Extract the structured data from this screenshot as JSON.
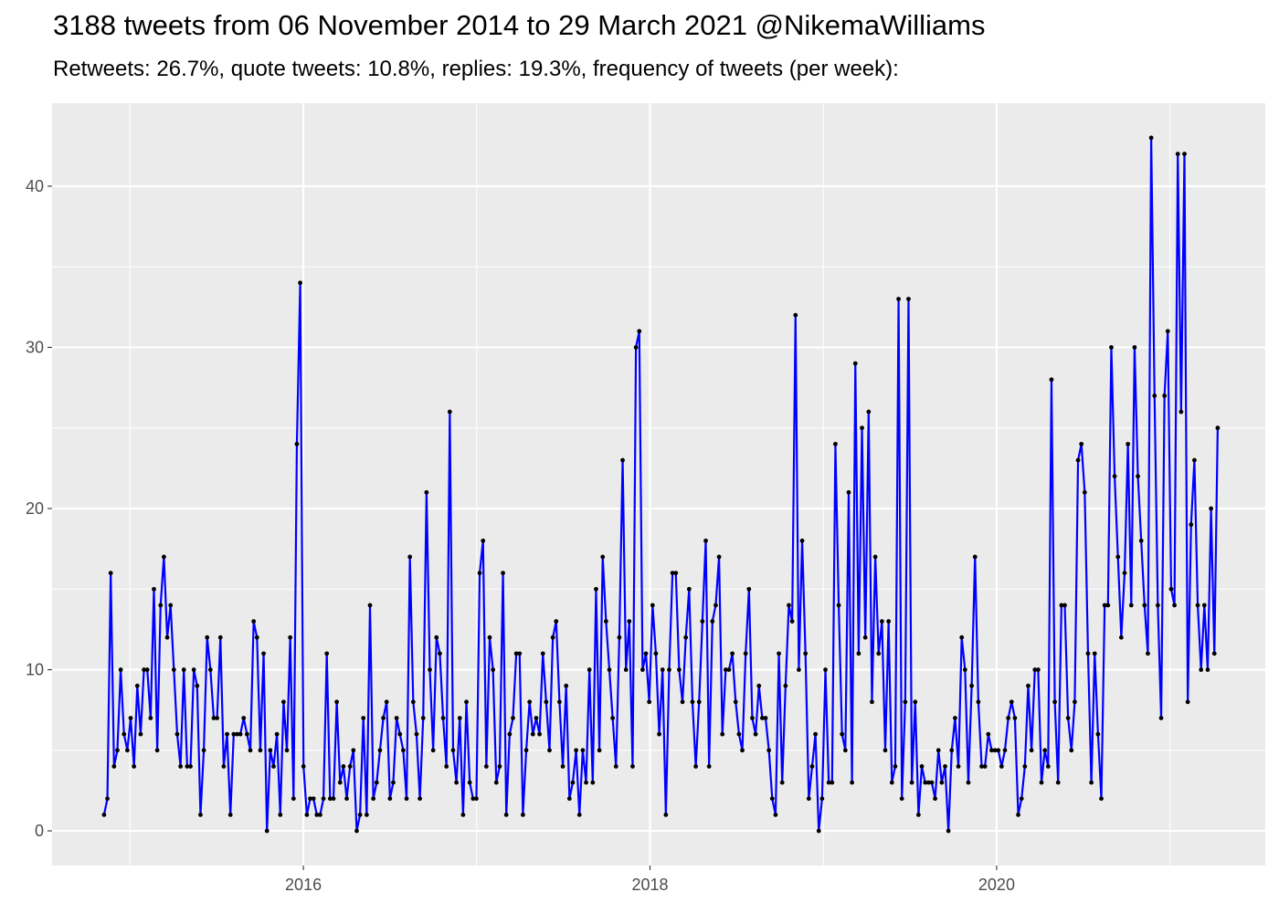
{
  "title": "3188 tweets from 06 November 2014 to 29 March 2021 @NikemaWilliams",
  "subtitle": "Retweets: 26.7%, quote tweets: 10.8%, replies: 19.3%, frequency of tweets (per week):",
  "colors": {
    "line": "#0000ff",
    "point": "#000000",
    "panel": "#ebebeb",
    "grid_major": "#ffffff"
  },
  "chart_data": {
    "type": "line",
    "xlabel": "",
    "ylabel": "",
    "x_range": [
      2014.85,
      2021.26
    ],
    "ylim": [
      0,
      43
    ],
    "x_ticks": [
      2016,
      2018,
      2020
    ],
    "x_tick_labels": [
      "2016",
      "2018",
      "2020"
    ],
    "y_ticks": [
      0,
      10,
      20,
      30,
      40
    ],
    "y_tick_labels": [
      "0",
      "10",
      "20",
      "30",
      "40"
    ],
    "grid": true,
    "series": [
      {
        "start_year": 2014.85,
        "step_years": 0.01918,
        "values": [
          1,
          2,
          16,
          4,
          5,
          10,
          6,
          5,
          7,
          4,
          9,
          6,
          10,
          10,
          7,
          15,
          5,
          14,
          17,
          12,
          14,
          10,
          6,
          4,
          10,
          4,
          4,
          10,
          9,
          1,
          5,
          12,
          10,
          7,
          7,
          12,
          4,
          6,
          1,
          6,
          6,
          6,
          7,
          6,
          5,
          13,
          12,
          5,
          11,
          0,
          5,
          4,
          6,
          1,
          8,
          5,
          12,
          2,
          24,
          34,
          4,
          1,
          2,
          2,
          1,
          1,
          2,
          11,
          2,
          2,
          8,
          3,
          4,
          2,
          4,
          5,
          0,
          1,
          7,
          1,
          14,
          2,
          3,
          5,
          7,
          8,
          2,
          3,
          7,
          6,
          5,
          2,
          17,
          8,
          6,
          2,
          7,
          21,
          10,
          5,
          12,
          11,
          7,
          4,
          26,
          5,
          3,
          7,
          1,
          8,
          3,
          2,
          2,
          16,
          18,
          4,
          12,
          10,
          3,
          4,
          16,
          1,
          6,
          7,
          11,
          11,
          1,
          5,
          8,
          6,
          7,
          6,
          11,
          8,
          5,
          12,
          13,
          8,
          4,
          9,
          2,
          3,
          5,
          1,
          5,
          3,
          10,
          3,
          15,
          5,
          17,
          13,
          10,
          7,
          4,
          12,
          23,
          10,
          13,
          4,
          30,
          31,
          10,
          11,
          8,
          14,
          11,
          6,
          10,
          1,
          10,
          16,
          16,
          10,
          8,
          12,
          15,
          8,
          4,
          8,
          13,
          18,
          4,
          13,
          14,
          17,
          6,
          10,
          10,
          11,
          8,
          6,
          5,
          11,
          15,
          7,
          6,
          9,
          7,
          7,
          5,
          2,
          1,
          11,
          3,
          9,
          14,
          13,
          32,
          10,
          18,
          11,
          2,
          4,
          6,
          0,
          2,
          10,
          3,
          3,
          24,
          14,
          6,
          5,
          21,
          3,
          29,
          11,
          25,
          12,
          26,
          8,
          17,
          11,
          13,
          5,
          13,
          3,
          4,
          33,
          2,
          8,
          33,
          3,
          8,
          1,
          4,
          3,
          3,
          3,
          2,
          5,
          3,
          4,
          0,
          5,
          7,
          4,
          12,
          10,
          3,
          9,
          17,
          8,
          4,
          4,
          6,
          5,
          5,
          5,
          4,
          5,
          7,
          8,
          7,
          1,
          2,
          4,
          9,
          5,
          10,
          10,
          3,
          5,
          4,
          28,
          8,
          3,
          14,
          14,
          7,
          5,
          8,
          23,
          24,
          21,
          11,
          3,
          11,
          6,
          2,
          14,
          14,
          30,
          22,
          17,
          12,
          16,
          24,
          14,
          30,
          22,
          18,
          14,
          11,
          43,
          27,
          14,
          7,
          27,
          31,
          15,
          14,
          42,
          26,
          42,
          8,
          19,
          23,
          14,
          10,
          14,
          10,
          20,
          11,
          25
        ]
      }
    ]
  }
}
